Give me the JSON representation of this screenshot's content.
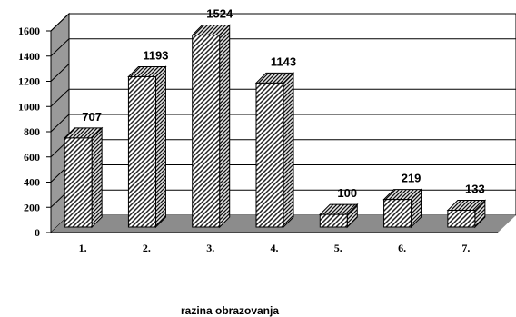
{
  "chart_data": {
    "type": "bar",
    "categories": [
      "1.",
      "2.",
      "3.",
      "4.",
      "5.",
      "6.",
      "7."
    ],
    "values": [
      707,
      1193,
      1524,
      1143,
      100,
      219,
      133
    ],
    "xlabel": "razina obrazovanja",
    "ylabel": "",
    "ylim": [
      0,
      1600
    ],
    "yticks": [
      0,
      200,
      400,
      600,
      800,
      1000,
      1200,
      1400,
      1600
    ],
    "grid": true,
    "data_labels": true,
    "bar_style": "3d-hatched",
    "colors": {
      "bar_front": "#ffffff",
      "hatch": "#222222",
      "floor": "#8c8c8c",
      "side_wall": "#9a9a9a",
      "grid": "#000000"
    }
  }
}
